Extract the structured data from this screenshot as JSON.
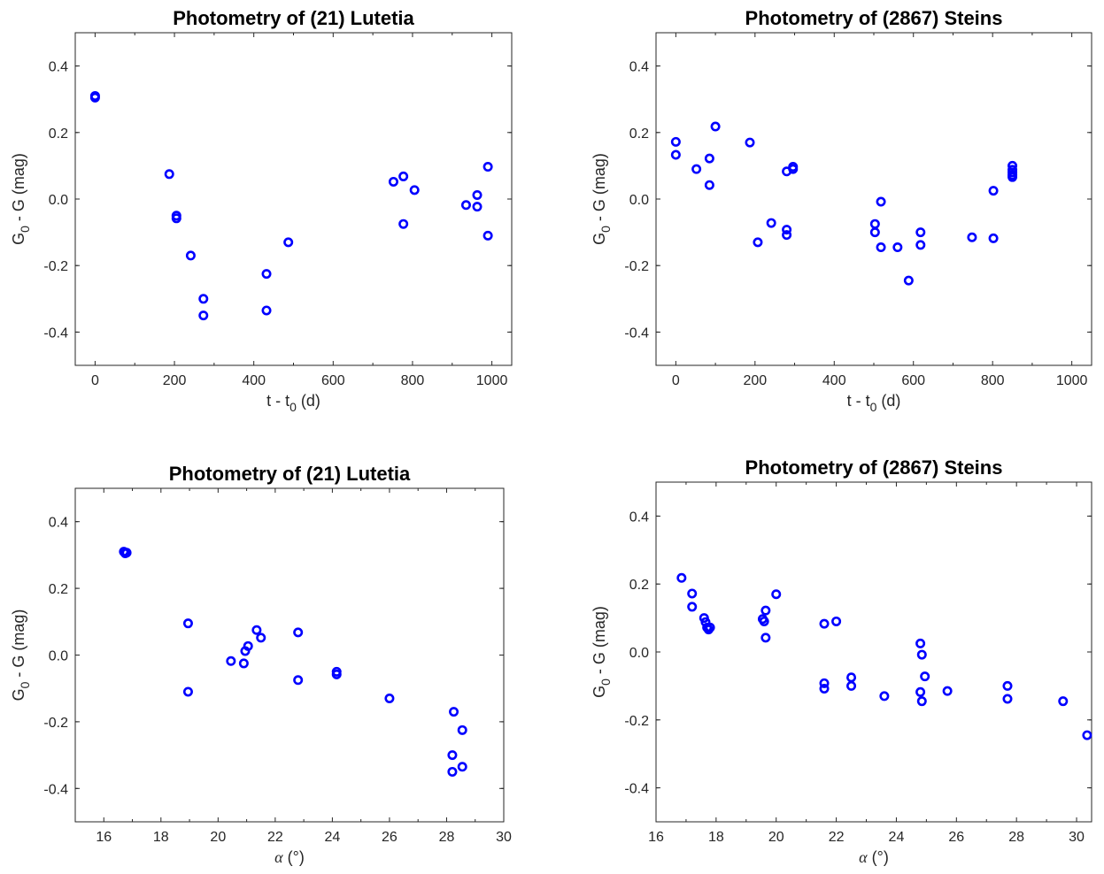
{
  "colors": {
    "marker": "#0000ff",
    "axis": "#262626",
    "background": "#ffffff"
  },
  "chart_data": [
    {
      "type": "scatter",
      "title": "Photometry of (21) Lutetia",
      "xlabel": {
        "base": "t - t",
        "sub": "0",
        "tail": " (d)"
      },
      "ylabel": {
        "base": "G",
        "sub": "0",
        "tail": " - G (mag)"
      },
      "xlim": [
        -50,
        1050
      ],
      "ylim": [
        -0.5,
        0.5
      ],
      "xticks": [
        0,
        200,
        400,
        600,
        800,
        1000
      ],
      "yticks": [
        -0.4,
        -0.2,
        0.0,
        0.2,
        0.4
      ],
      "xtick_labels": [
        "0",
        "200",
        "400",
        "600",
        "800",
        "1000"
      ],
      "ytick_labels": [
        "-0.4",
        "-0.2",
        "0.0",
        "0.2",
        "0.4"
      ],
      "grid": false,
      "x": [
        0,
        0,
        187,
        205,
        205,
        241,
        273,
        273,
        432,
        432,
        487,
        752,
        777,
        777,
        805,
        935,
        963,
        963,
        990,
        990
      ],
      "y": [
        0.31,
        0.305,
        0.075,
        -0.05,
        -0.058,
        -0.17,
        -0.3,
        -0.35,
        -0.225,
        -0.335,
        -0.13,
        0.052,
        0.068,
        -0.075,
        0.027,
        -0.018,
        0.012,
        -0.023,
        0.097,
        -0.11
      ]
    },
    {
      "type": "scatter",
      "title": "Photometry of (2867) Steins",
      "xlabel": {
        "base": "t - t",
        "sub": "0",
        "tail": " (d)"
      },
      "ylabel": {
        "base": "G",
        "sub": "0",
        "tail": " - G (mag)"
      },
      "xlim": [
        -50,
        1050
      ],
      "ylim": [
        -0.5,
        0.5
      ],
      "xticks": [
        0,
        200,
        400,
        600,
        800,
        1000
      ],
      "yticks": [
        -0.4,
        -0.2,
        0.0,
        0.2,
        0.4
      ],
      "xtick_labels": [
        "0",
        "200",
        "400",
        "600",
        "800",
        "1000"
      ],
      "ytick_labels": [
        "-0.4",
        "-0.2",
        "0.0",
        "0.2",
        "0.4"
      ],
      "grid": false,
      "x": [
        0,
        0,
        52,
        85,
        85,
        100,
        187,
        207,
        241,
        280,
        280,
        280,
        296,
        296,
        503,
        503,
        518,
        518,
        560,
        588,
        618,
        618,
        748,
        802,
        802,
        850,
        850,
        850,
        850,
        850
      ],
      "y": [
        0.172,
        0.133,
        0.09,
        0.122,
        0.042,
        0.218,
        0.17,
        -0.13,
        -0.072,
        0.083,
        -0.092,
        -0.108,
        0.097,
        0.09,
        -0.075,
        -0.1,
        -0.008,
        -0.145,
        -0.145,
        -0.245,
        -0.1,
        -0.138,
        -0.115,
        0.025,
        -0.118,
        0.1,
        0.088,
        0.08,
        0.072,
        0.066
      ]
    },
    {
      "type": "scatter",
      "title": "Photometry of (21) Lutetia",
      "xlabel": {
        "base": "α",
        "sub": "",
        "tail": " (°)"
      },
      "ylabel": {
        "base": "G",
        "sub": "0",
        "tail": " - G (mag)"
      },
      "xlim": [
        15,
        30
      ],
      "ylim": [
        -0.5,
        0.5
      ],
      "xticks": [
        16,
        18,
        20,
        22,
        24,
        26,
        28,
        30
      ],
      "yticks": [
        -0.4,
        -0.2,
        0.0,
        0.2,
        0.4
      ],
      "xtick_labels": [
        "16",
        "18",
        "20",
        "22",
        "24",
        "26",
        "28",
        "30"
      ],
      "ytick_labels": [
        "-0.4",
        "-0.2",
        "0.0",
        "0.2",
        "0.4"
      ],
      "grid": false,
      "x": [
        16.7,
        16.75,
        16.8,
        18.95,
        18.95,
        20.45,
        20.9,
        20.95,
        21.05,
        21.35,
        21.5,
        22.8,
        22.8,
        24.15,
        24.15,
        26.0,
        28.2,
        28.25,
        28.2,
        28.55,
        28.55
      ],
      "y": [
        0.31,
        0.305,
        0.307,
        0.095,
        -0.11,
        -0.018,
        -0.025,
        0.012,
        0.027,
        0.075,
        0.052,
        0.068,
        -0.075,
        -0.05,
        -0.058,
        -0.13,
        -0.3,
        -0.17,
        -0.35,
        -0.225,
        -0.335
      ]
    },
    {
      "type": "scatter",
      "title": "Photometry of (2867) Steins",
      "xlabel": {
        "base": "α",
        "sub": "",
        "tail": " (°)"
      },
      "ylabel": {
        "base": "G",
        "sub": "0",
        "tail": " - G (mag)"
      },
      "xlim": [
        16,
        30.5
      ],
      "ylim": [
        -0.5,
        0.5
      ],
      "xticks": [
        16,
        18,
        20,
        22,
        24,
        26,
        28,
        30
      ],
      "yticks": [
        -0.4,
        -0.2,
        0.0,
        0.2,
        0.4
      ],
      "xtick_labels": [
        "16",
        "18",
        "20",
        "22",
        "24",
        "26",
        "28",
        "30"
      ],
      "ytick_labels": [
        "-0.4",
        "-0.2",
        "0.0",
        "0.2",
        "0.4"
      ],
      "grid": false,
      "x": [
        16.85,
        17.2,
        17.2,
        17.6,
        17.65,
        17.7,
        17.75,
        17.8,
        19.55,
        19.6,
        19.65,
        19.65,
        20.0,
        21.6,
        21.6,
        21.6,
        22.0,
        22.5,
        22.5,
        23.6,
        24.8,
        24.85,
        24.8,
        24.85,
        24.95,
        25.7,
        27.7,
        27.7,
        29.55,
        30.35
      ],
      "y": [
        0.218,
        0.172,
        0.133,
        0.1,
        0.088,
        0.072,
        0.066,
        0.072,
        0.097,
        0.09,
        0.122,
        0.042,
        0.17,
        0.083,
        -0.092,
        -0.108,
        0.09,
        -0.075,
        -0.1,
        -0.13,
        0.025,
        -0.008,
        -0.118,
        -0.145,
        -0.072,
        -0.115,
        -0.1,
        -0.138,
        -0.145,
        -0.245
      ]
    }
  ]
}
